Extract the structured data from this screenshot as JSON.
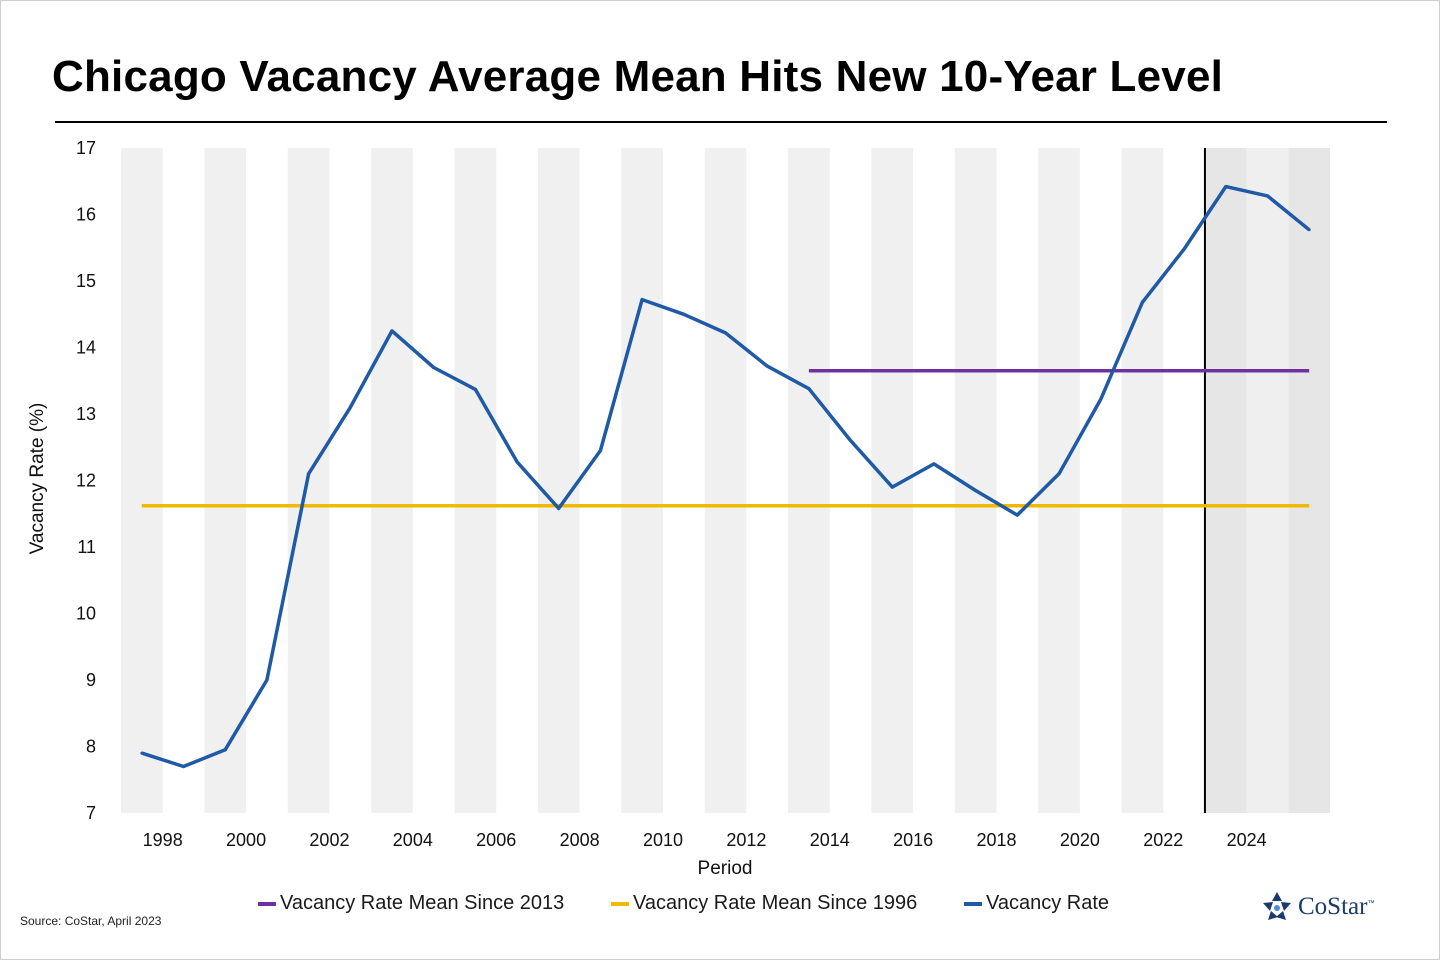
{
  "title": "Chicago Vacancy Average Mean Hits New 10-Year Level",
  "source": "Source: CoStar, April 2023",
  "brand": {
    "name": "CoStar",
    "trademark": "™",
    "icon": "costar-star-logo"
  },
  "colors": {
    "vacancy_rate": "#1f5aa6",
    "mean_since_2013": "#7030a0",
    "mean_since_1996": "#f2b800",
    "band": "#f0f0f0",
    "forecast_band": "#e6e6e6",
    "divider": "#000000"
  },
  "chart_data": {
    "type": "line",
    "title": "",
    "xlabel": "Period",
    "ylabel": "Vacancy Rate (%)",
    "ylim": [
      7,
      17
    ],
    "yticks": [
      7,
      8,
      9,
      10,
      11,
      12,
      13,
      14,
      15,
      16,
      17
    ],
    "xlim": [
      1997,
      2026
    ],
    "xticks": [
      "1998",
      "2000",
      "2002",
      "2004",
      "2006",
      "2008",
      "2010",
      "2012",
      "2014",
      "2016",
      "2018",
      "2020",
      "2022",
      "2024"
    ],
    "forecast_start": 2023,
    "grid": false,
    "alternating_year_bands": true,
    "legend_position": "bottom",
    "series": [
      {
        "name": "Vacancy Rate Mean Since 2013",
        "color": "#7030a0",
        "x": [
          2013.5,
          2025.5
        ],
        "y": [
          13.65,
          13.65
        ]
      },
      {
        "name": "Vacancy Rate Mean Since 1996",
        "color": "#f2b800",
        "x": [
          1997.5,
          2025.5
        ],
        "y": [
          11.62,
          11.62
        ]
      },
      {
        "name": "Vacancy Rate",
        "color": "#1f5aa6",
        "x": [
          1997.5,
          1998.5,
          1999.5,
          2000.5,
          2001.5,
          2002.5,
          2003.5,
          2004.5,
          2005.5,
          2006.5,
          2007.5,
          2008.5,
          2009.5,
          2010.5,
          2011.5,
          2012.5,
          2013.5,
          2014.5,
          2015.5,
          2016.5,
          2017.5,
          2018.5,
          2019.5,
          2020.5,
          2021.5,
          2022.5,
          2023.5,
          2024.5,
          2025.5
        ],
        "y": [
          7.9,
          7.7,
          7.95,
          9.0,
          12.1,
          13.1,
          14.25,
          13.7,
          13.37,
          12.28,
          11.58,
          12.45,
          14.72,
          14.5,
          14.22,
          13.72,
          13.38,
          12.6,
          11.9,
          12.25,
          11.85,
          11.48,
          12.1,
          13.22,
          14.68,
          15.48,
          16.42,
          16.28,
          15.77
        ]
      }
    ]
  }
}
